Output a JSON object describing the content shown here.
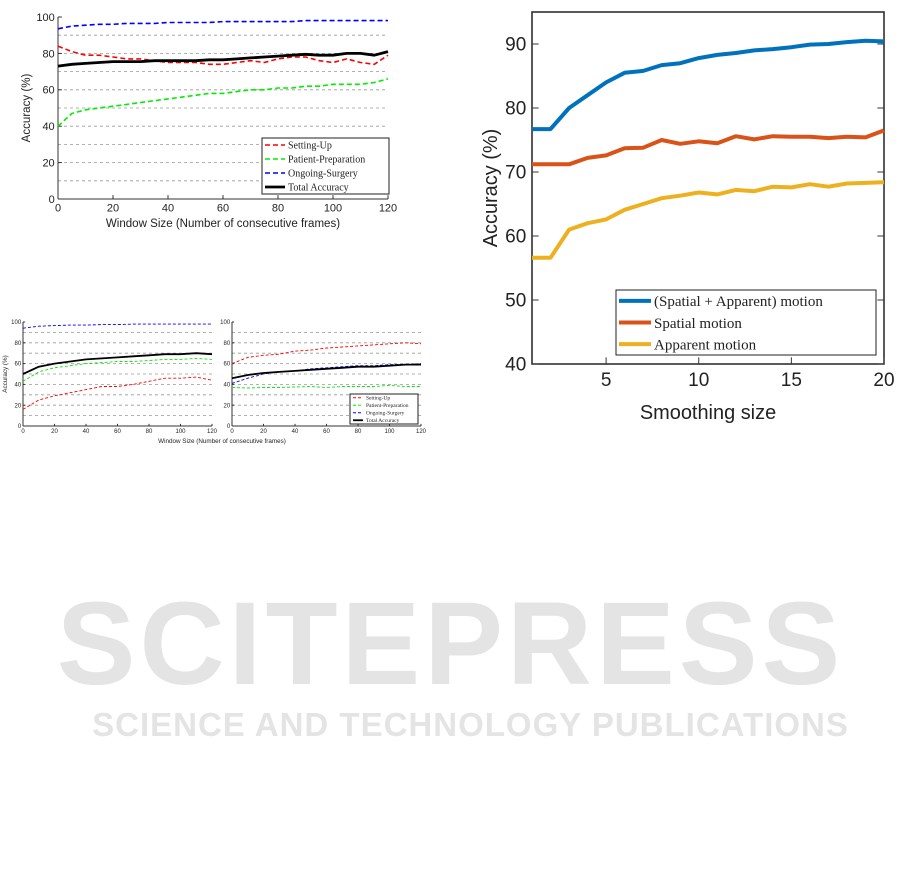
{
  "watermark": {
    "title": "SCITEPRESS",
    "subtitle": "SCIENCE AND TECHNOLOGY PUBLICATIONS"
  },
  "chart_data": [
    {
      "id": "top-left",
      "type": "line",
      "xlabel": "Window Size (Number of consecutive frames)",
      "ylabel": "Accuracy (%)",
      "xlim": [
        0,
        120
      ],
      "ylim": [
        0,
        100
      ],
      "xticks": [
        0,
        20,
        40,
        60,
        80,
        100,
        120
      ],
      "yticks": [
        0,
        20,
        40,
        60,
        80,
        100
      ],
      "grid": [
        10,
        20,
        30,
        40,
        50,
        60,
        70,
        80,
        90
      ],
      "legend_position": "bottom-right",
      "x": [
        0,
        5,
        10,
        15,
        20,
        25,
        30,
        35,
        40,
        45,
        50,
        55,
        60,
        65,
        70,
        75,
        80,
        85,
        90,
        95,
        100,
        105,
        110,
        115,
        120
      ],
      "series": [
        {
          "name": "Setting-Up",
          "color": "#ff0000",
          "style": "dashed",
          "values": [
            84,
            81,
            79,
            79,
            78,
            77,
            77,
            76,
            75,
            75,
            75,
            74,
            74,
            75,
            76,
            75,
            77,
            78,
            78,
            76,
            75,
            77,
            75,
            74,
            79
          ]
        },
        {
          "name": "Patient-Preparation",
          "color": "#00ee00",
          "style": "dashed",
          "values": [
            40,
            47,
            49,
            50,
            51,
            52,
            53,
            54,
            55,
            56,
            57,
            58,
            58,
            59,
            60,
            60,
            61,
            61,
            62,
            62,
            63,
            63,
            63,
            64,
            66
          ]
        },
        {
          "name": "Ongoing-Surgery",
          "color": "#0000ff",
          "style": "dashed",
          "values": [
            93.5,
            95,
            95.5,
            96,
            96,
            96.5,
            96.5,
            96.5,
            97,
            97,
            97,
            97,
            97.5,
            97.5,
            97.5,
            97.5,
            97.5,
            97.5,
            98,
            98,
            98,
            98,
            98,
            98,
            98
          ]
        },
        {
          "name": "Total Accuracy",
          "color": "#000000",
          "style": "solid",
          "values": [
            73,
            74,
            74.5,
            75,
            75.5,
            75.5,
            75.5,
            76,
            76,
            76,
            76,
            76.5,
            76.5,
            77,
            77.5,
            78,
            78.5,
            79,
            79.5,
            79,
            79,
            80,
            80,
            79,
            81
          ]
        }
      ]
    },
    {
      "id": "bottom-small-left",
      "type": "line",
      "xlabel": "Window Size (Number of consecutive frames)",
      "ylabel": "Accuracy (%)",
      "xlim": [
        0,
        120
      ],
      "ylim": [
        0,
        100
      ],
      "xticks": [
        0,
        20,
        40,
        60,
        80,
        100,
        120
      ],
      "yticks": [
        0,
        20,
        40,
        60,
        80,
        100
      ],
      "grid": [
        10,
        20,
        30,
        40,
        50,
        60,
        70,
        80,
        90
      ],
      "x": [
        0,
        10,
        20,
        30,
        40,
        50,
        60,
        70,
        80,
        90,
        100,
        110,
        120
      ],
      "series": [
        {
          "name": "Setting-Up",
          "color": "#ff0000",
          "style": "dashed",
          "values": [
            16,
            25,
            29,
            32,
            35,
            38,
            38,
            40,
            43,
            46,
            46,
            47,
            44
          ]
        },
        {
          "name": "Patient-Preparation",
          "color": "#00ee00",
          "style": "dashed",
          "values": [
            43,
            52,
            56,
            58,
            60,
            61,
            62,
            62,
            63,
            64,
            64,
            65,
            64
          ]
        },
        {
          "name": "Ongoing-Surgery",
          "color": "#0000ff",
          "style": "dashed",
          "values": [
            94,
            96,
            96.5,
            97,
            97,
            97.5,
            97.5,
            98,
            98,
            98,
            98,
            98,
            98
          ]
        },
        {
          "name": "Total Accuracy",
          "color": "#000000",
          "style": "solid",
          "values": [
            50,
            57,
            60,
            62,
            64,
            65,
            66,
            67,
            68,
            69,
            69,
            70,
            69
          ]
        }
      ]
    },
    {
      "id": "bottom-small-right",
      "type": "line",
      "xlim": [
        0,
        120
      ],
      "ylim": [
        0,
        100
      ],
      "xticks": [
        0,
        20,
        40,
        60,
        80,
        100,
        120
      ],
      "yticks": [
        0,
        20,
        40,
        60,
        80,
        100
      ],
      "grid": [
        10,
        20,
        30,
        40,
        50,
        60,
        70,
        80,
        90
      ],
      "legend_position": "bottom-right",
      "x": [
        0,
        10,
        20,
        30,
        40,
        50,
        60,
        70,
        80,
        90,
        100,
        110,
        120
      ],
      "series": [
        {
          "name": "Setting-Up",
          "color": "#ff0000",
          "style": "dashed",
          "values": [
            60,
            66,
            68,
            69,
            72,
            73,
            75,
            76,
            77,
            78,
            79,
            80,
            79
          ]
        },
        {
          "name": "Patient-Preparation",
          "color": "#00ee00",
          "style": "dashed",
          "values": [
            37,
            36.5,
            37,
            37,
            37.5,
            38,
            37,
            38,
            38,
            38,
            39,
            38,
            38
          ]
        },
        {
          "name": "Ongoing-Surgery",
          "color": "#0000ff",
          "style": "dashed",
          "values": [
            41,
            46,
            50,
            52,
            53,
            55,
            56,
            57,
            58,
            58,
            59,
            59,
            60
          ]
        },
        {
          "name": "Total Accuracy",
          "color": "#000000",
          "style": "solid",
          "values": [
            46,
            49,
            51,
            52,
            53,
            54,
            55,
            56,
            57,
            57,
            58,
            59,
            59
          ]
        }
      ]
    },
    {
      "id": "right",
      "type": "line",
      "xlabel": "Smoothing size",
      "ylabel": "Accuracy (%)",
      "xlim": [
        1,
        20
      ],
      "ylim": [
        40,
        95
      ],
      "xticks": [
        5,
        10,
        15,
        20
      ],
      "yticks": [
        40,
        50,
        60,
        70,
        80,
        90
      ],
      "grid": [],
      "legend_position": "bottom-right",
      "x": [
        1,
        2,
        3,
        4,
        5,
        6,
        7,
        8,
        9,
        10,
        11,
        12,
        13,
        14,
        15,
        16,
        17,
        18,
        19,
        20
      ],
      "series": [
        {
          "name": "(Spatial + Apparent) motion",
          "color": "#0072BD",
          "style": "solid",
          "values": [
            76.7,
            76.7,
            80,
            82,
            84,
            85.5,
            85.8,
            86.7,
            87,
            87.8,
            88.3,
            88.6,
            89,
            89.2,
            89.5,
            89.9,
            90,
            90.3,
            90.5,
            90.4
          ]
        },
        {
          "name": "Spatial motion",
          "color": "#D95319",
          "style": "solid",
          "values": [
            71.2,
            71.2,
            71.2,
            72.2,
            72.6,
            73.7,
            73.8,
            75,
            74.4,
            74.8,
            74.5,
            75.6,
            75.1,
            75.6,
            75.5,
            75.5,
            75.3,
            75.5,
            75.4,
            76.5
          ]
        },
        {
          "name": "Apparent motion",
          "color": "#EDB120",
          "style": "solid",
          "values": [
            56.6,
            56.6,
            61,
            62,
            62.6,
            64.1,
            65,
            65.9,
            66.3,
            66.8,
            66.5,
            67.2,
            67,
            67.7,
            67.6,
            68.1,
            67.7,
            68.2,
            68.3,
            68.4
          ]
        }
      ]
    }
  ]
}
